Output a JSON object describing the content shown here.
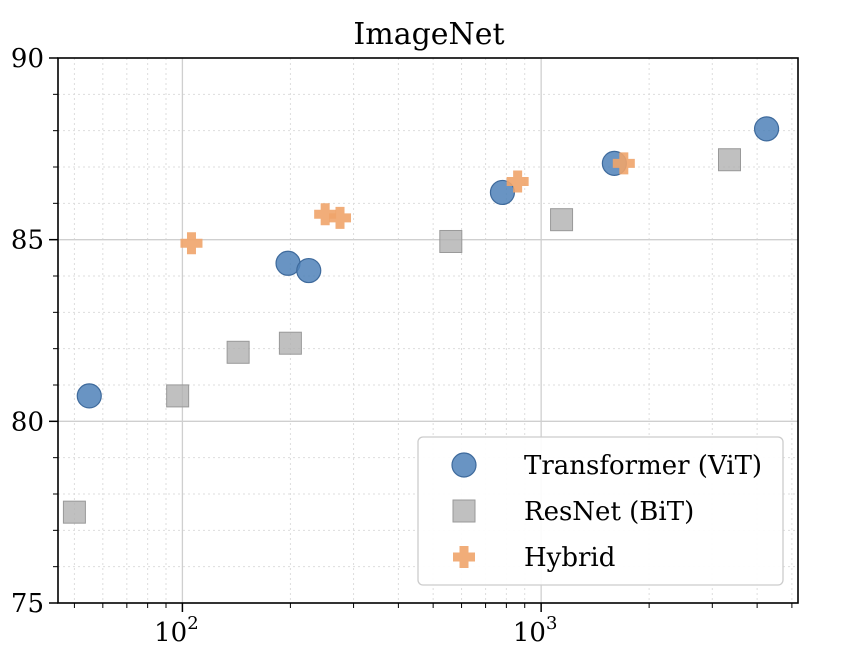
{
  "chart_data": {
    "type": "scatter",
    "title": "ImageNet",
    "xlabel": "",
    "ylabel": "",
    "xscale": "log",
    "xlim": [
      45,
      5200
    ],
    "ylim": [
      75,
      90
    ],
    "grid": true,
    "x_tick_labels": [
      {
        "value": 100,
        "base": "10",
        "exp": "2"
      },
      {
        "value": 1000,
        "base": "10",
        "exp": "3"
      }
    ],
    "y_ticks": [
      75,
      80,
      85,
      90
    ],
    "legend": {
      "placement": "bottom-right"
    },
    "series": [
      {
        "name": "Transformer (ViT)",
        "marker": "circle",
        "color": "#4f81b8",
        "points": [
          [
            55,
            80.7
          ],
          [
            197,
            84.35
          ],
          [
            225,
            84.15
          ],
          [
            780,
            86.3
          ],
          [
            1600,
            87.1
          ],
          [
            4250,
            88.05
          ]
        ]
      },
      {
        "name": "ResNet (BiT)",
        "marker": "square",
        "color": "#b0b0b0",
        "points": [
          [
            50,
            77.5
          ],
          [
            97,
            80.7
          ],
          [
            143,
            81.9
          ],
          [
            200,
            82.15
          ],
          [
            560,
            84.95
          ],
          [
            1140,
            85.55
          ],
          [
            3350,
            87.2
          ]
        ]
      },
      {
        "name": "Hybrid",
        "marker": "plus",
        "color": "#f0a46a",
        "points": [
          [
            106,
            84.9
          ],
          [
            250,
            85.7
          ],
          [
            275,
            85.6
          ],
          [
            860,
            86.6
          ],
          [
            1700,
            87.1
          ]
        ]
      }
    ]
  }
}
